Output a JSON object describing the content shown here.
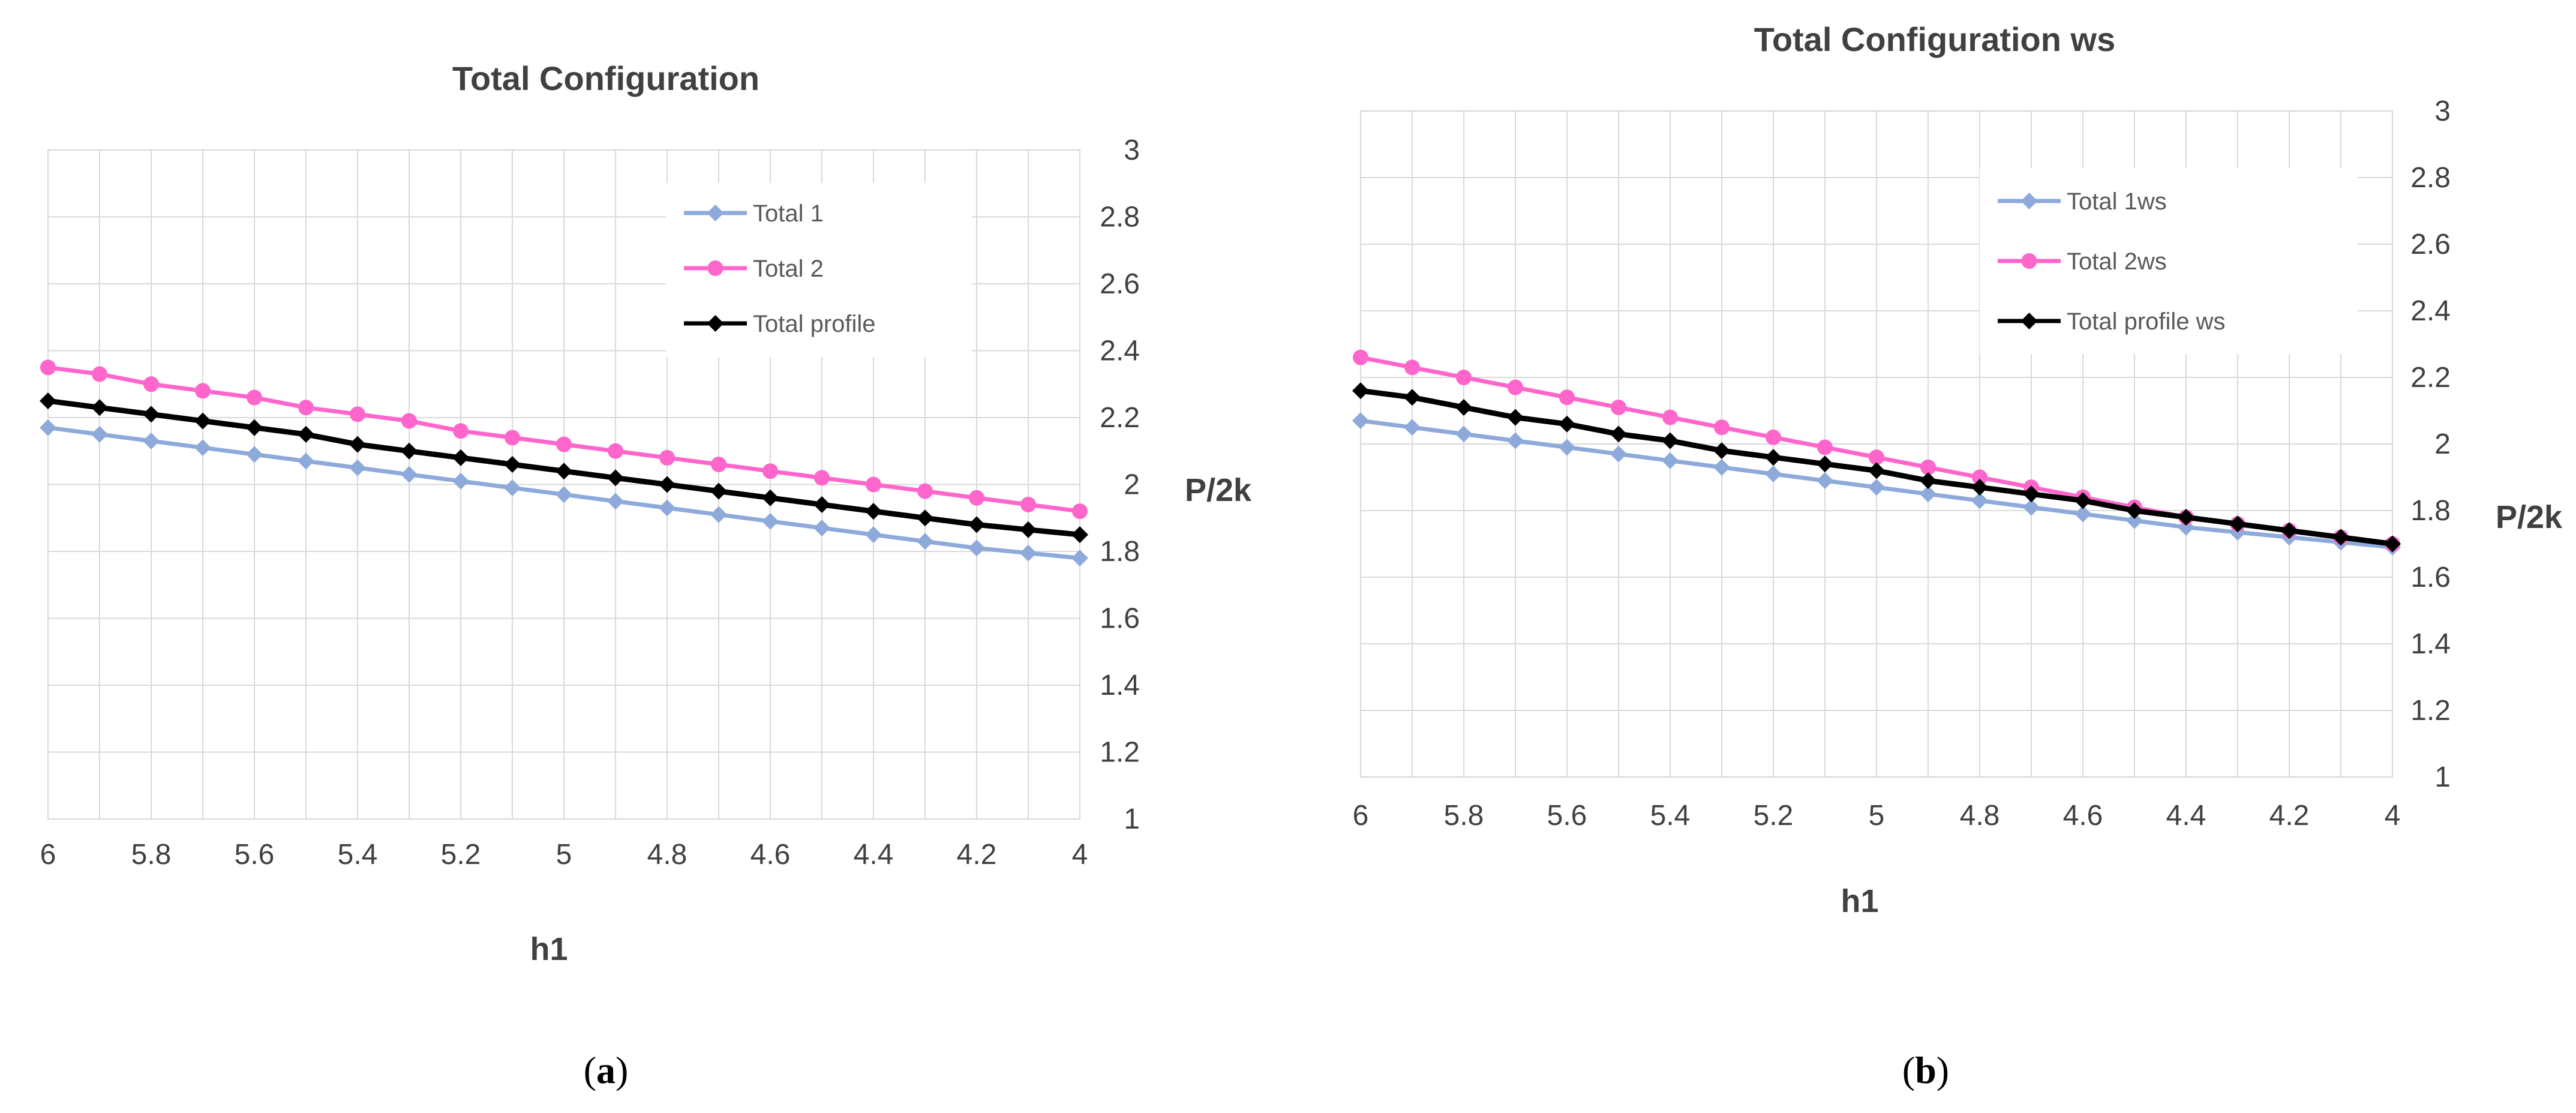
{
  "chart_data": [
    {
      "type": "line",
      "panel_label": "a",
      "title": "Total Configuration",
      "xlabel": "h1",
      "ylabel": "P/2k",
      "x": [
        6,
        5.9,
        5.8,
        5.7,
        5.6,
        5.5,
        5.4,
        5.3,
        5.2,
        5.1,
        5,
        4.9,
        4.8,
        4.7,
        4.6,
        4.5,
        4.4,
        4.3,
        4.2,
        4.1,
        4
      ],
      "xlim": [
        6,
        4
      ],
      "x_ticks": [
        "6",
        "5.8",
        "5.6",
        "5.4",
        "5.2",
        "5",
        "4.8",
        "4.6",
        "4.4",
        "4.2",
        "4"
      ],
      "ylim": [
        1,
        3
      ],
      "y_ticks": [
        "1",
        "1.2",
        "1.4",
        "1.6",
        "1.8",
        "2",
        "2.2",
        "2.4",
        "2.6",
        "2.8",
        "3"
      ],
      "grid": true,
      "legend_position": "top-right",
      "series": [
        {
          "name": "Total 1",
          "color": "#8eaadb",
          "marker": "diamond",
          "values": [
            2.17,
            2.15,
            2.13,
            2.11,
            2.09,
            2.07,
            2.05,
            2.03,
            2.01,
            1.99,
            1.97,
            1.95,
            1.93,
            1.91,
            1.89,
            1.87,
            1.85,
            1.83,
            1.81,
            1.795,
            1.78
          ]
        },
        {
          "name": "Total 2",
          "color": "#ff66cc",
          "marker": "circle",
          "values": [
            2.35,
            2.33,
            2.3,
            2.28,
            2.26,
            2.23,
            2.21,
            2.19,
            2.16,
            2.14,
            2.12,
            2.1,
            2.08,
            2.06,
            2.04,
            2.02,
            2.0,
            1.98,
            1.96,
            1.94,
            1.92
          ]
        },
        {
          "name": "Total profile",
          "color": "#000000",
          "marker": "diamond",
          "values": [
            2.25,
            2.23,
            2.21,
            2.19,
            2.17,
            2.15,
            2.12,
            2.1,
            2.08,
            2.06,
            2.04,
            2.02,
            2.0,
            1.98,
            1.96,
            1.94,
            1.92,
            1.9,
            1.88,
            1.865,
            1.85
          ]
        }
      ]
    },
    {
      "type": "line",
      "panel_label": "b",
      "title": "Total Configuration ws",
      "xlabel": "h1",
      "ylabel": "P/2k",
      "x": [
        6,
        5.9,
        5.8,
        5.7,
        5.6,
        5.5,
        5.4,
        5.3,
        5.2,
        5.1,
        5,
        4.9,
        4.8,
        4.7,
        4.6,
        4.5,
        4.4,
        4.3,
        4.2,
        4.1,
        4
      ],
      "xlim": [
        6,
        4
      ],
      "x_ticks": [
        "6",
        "5.8",
        "5.6",
        "5.4",
        "5.2",
        "5",
        "4.8",
        "4.6",
        "4.4",
        "4.2",
        "4"
      ],
      "ylim": [
        1,
        3
      ],
      "y_ticks": [
        "1",
        "1.2",
        "1.4",
        "1.6",
        "1.8",
        "2",
        "2.2",
        "2.4",
        "2.6",
        "2.8",
        "3"
      ],
      "grid": true,
      "legend_position": "top-right",
      "series": [
        {
          "name": "Total 1ws",
          "color": "#8eaadb",
          "marker": "diamond",
          "values": [
            2.07,
            2.05,
            2.03,
            2.01,
            1.99,
            1.97,
            1.95,
            1.93,
            1.91,
            1.89,
            1.87,
            1.85,
            1.83,
            1.81,
            1.79,
            1.77,
            1.75,
            1.735,
            1.72,
            1.705,
            1.69
          ]
        },
        {
          "name": "Total 2ws",
          "color": "#ff66cc",
          "marker": "circle",
          "values": [
            2.26,
            2.23,
            2.2,
            2.17,
            2.14,
            2.11,
            2.08,
            2.05,
            2.02,
            1.99,
            1.96,
            1.93,
            1.9,
            1.87,
            1.84,
            1.81,
            1.78,
            1.76,
            1.74,
            1.72,
            1.7
          ]
        },
        {
          "name": "Total profile ws",
          "color": "#000000",
          "marker": "diamond",
          "values": [
            2.16,
            2.14,
            2.11,
            2.08,
            2.06,
            2.03,
            2.01,
            1.98,
            1.96,
            1.94,
            1.92,
            1.89,
            1.87,
            1.85,
            1.83,
            1.8,
            1.78,
            1.76,
            1.74,
            1.72,
            1.7
          ]
        }
      ]
    }
  ]
}
